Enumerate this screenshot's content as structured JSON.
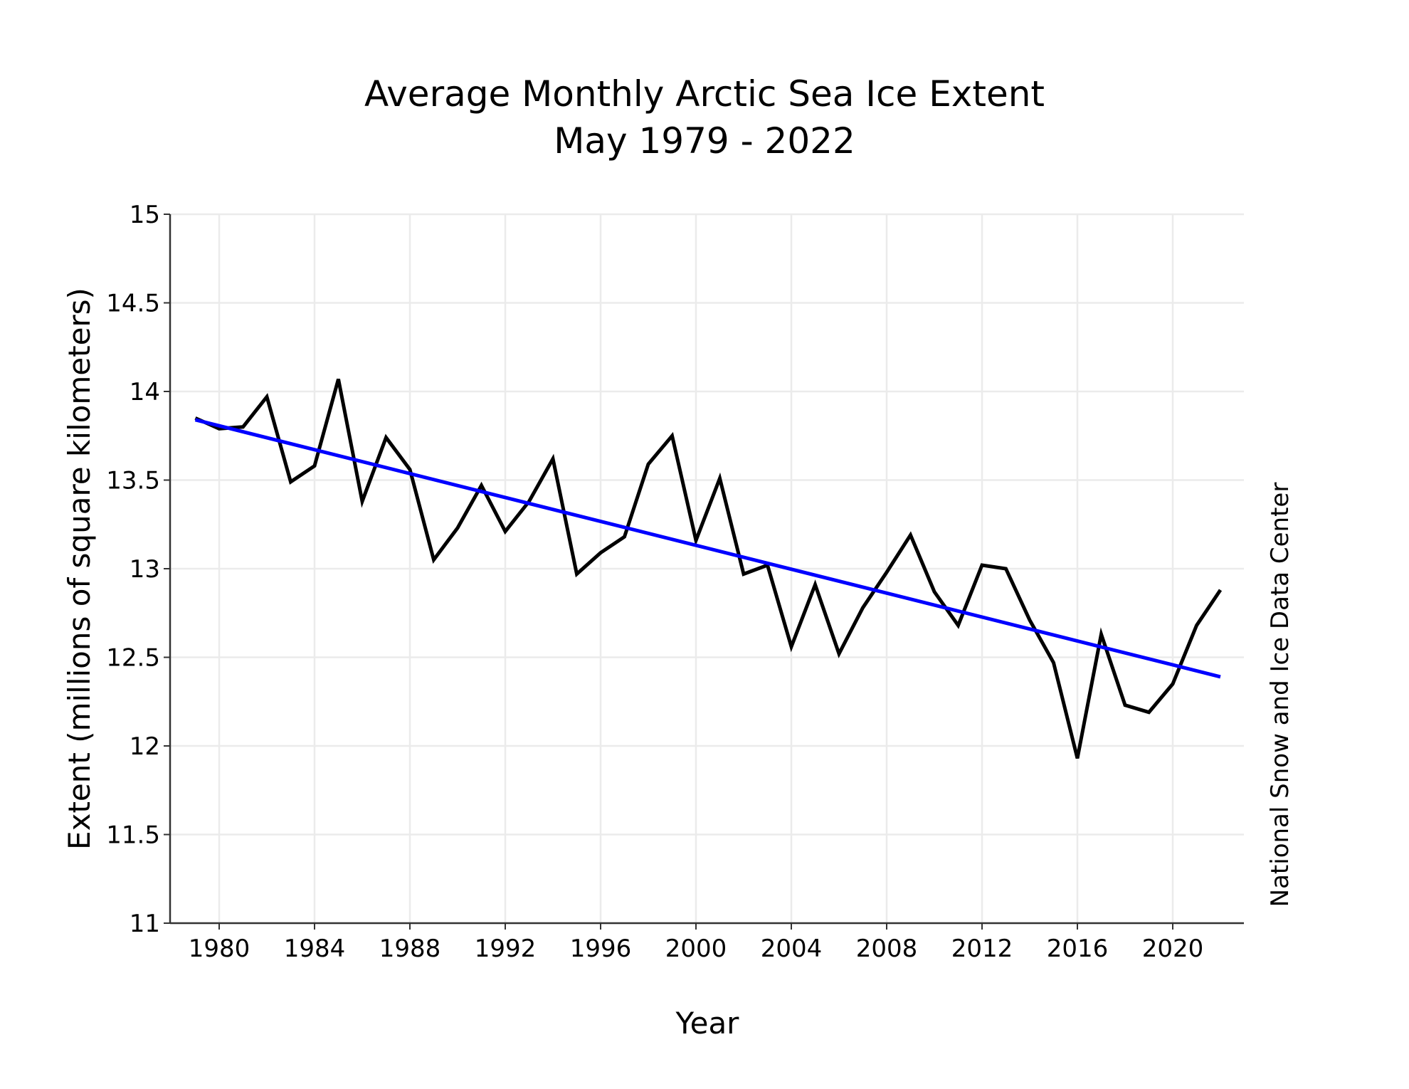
{
  "chart_data": {
    "type": "line",
    "title": "Average Monthly Arctic Sea Ice Extent",
    "subtitle": "May 1979 - 2022",
    "xlabel": "Year",
    "ylabel": "Extent (millions of square kilometers)",
    "credit": "National Snow and Ice Data Center",
    "xlim": [
      1977,
      2023.5
    ],
    "ylim": [
      11,
      15
    ],
    "xticks": [
      1980,
      1984,
      1988,
      1992,
      1996,
      2000,
      2004,
      2008,
      2012,
      2016,
      2020
    ],
    "yticks": [
      11,
      11.5,
      12,
      12.5,
      13,
      13.5,
      14,
      14.5,
      15
    ],
    "grid": true,
    "legend": "none",
    "series": [
      {
        "color": "#000000",
        "x": [
          1979,
          1980,
          1981,
          1982,
          1983,
          1984,
          1985,
          1986,
          1987,
          1988,
          1989,
          1990,
          1991,
          1992,
          1993,
          1994,
          1995,
          1996,
          1997,
          1998,
          1999,
          2000,
          2001,
          2002,
          2003,
          2004,
          2005,
          2006,
          2007,
          2008,
          2009,
          2010,
          2011,
          2012,
          2013,
          2014,
          2015,
          2016,
          2017,
          2018,
          2019,
          2020,
          2021,
          2022
        ],
        "values": [
          13.85,
          13.79,
          13.8,
          13.97,
          13.49,
          13.58,
          14.07,
          13.38,
          13.74,
          13.56,
          13.05,
          13.23,
          13.47,
          13.21,
          13.38,
          13.62,
          12.97,
          13.09,
          13.18,
          13.59,
          13.75,
          13.16,
          13.51,
          12.97,
          13.02,
          12.56,
          12.91,
          12.52,
          12.78,
          12.98,
          13.19,
          12.87,
          12.68,
          13.02,
          13.0,
          12.71,
          12.47,
          11.93,
          12.63,
          12.23,
          12.19,
          12.35,
          12.68,
          12.88
        ]
      },
      {
        "color": "#0000ff",
        "x": [
          1979,
          2022
        ],
        "values": [
          13.84,
          12.39
        ]
      }
    ]
  }
}
